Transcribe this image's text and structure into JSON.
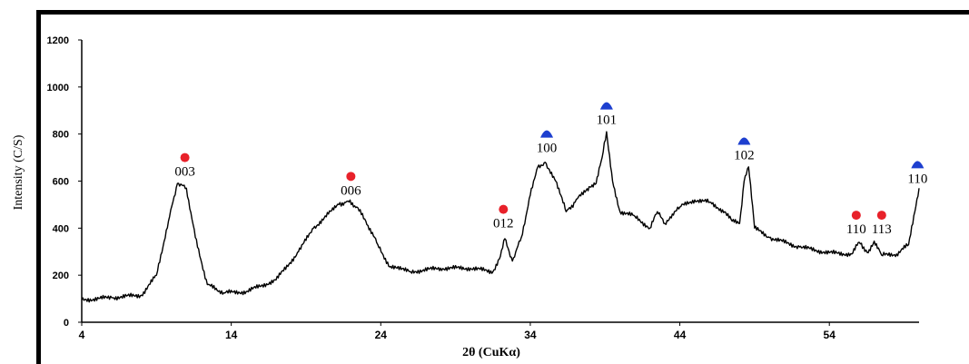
{
  "chart_data": {
    "type": "line",
    "xlabel": "2θ (CuKα)",
    "ylabel": "Intensity (C/S)",
    "xlim": [
      4,
      60
    ],
    "ylim": [
      0,
      1200
    ],
    "x_ticks": [
      4,
      14,
      24,
      34,
      44,
      54
    ],
    "y_ticks": [
      0,
      200,
      400,
      600,
      800,
      1000,
      1200
    ],
    "grid": false,
    "series": [
      {
        "x": [
          4,
          6,
          8,
          9,
          9.8,
          10.4,
          11,
          11.6,
          12.4,
          13.5,
          15,
          17,
          18.5,
          19.5,
          20.5,
          21.2,
          21.8,
          22.4,
          23,
          23.8,
          24.6,
          26,
          28,
          30,
          31.5,
          32,
          32.3,
          32.8,
          33.4,
          34,
          34.5,
          35,
          35.7,
          36.4,
          37,
          37.6,
          38,
          38.4,
          38.8,
          39.1,
          39.5,
          40,
          41,
          42,
          42.5,
          43,
          43.5,
          44,
          45,
          46,
          47,
          47.5,
          48,
          48.3,
          48.6,
          49,
          50,
          52,
          54,
          55.5,
          56,
          56.6,
          57,
          57.5,
          58.5,
          59.3,
          60
        ],
        "y": [
          95,
          105,
          115,
          200,
          430,
          590,
          570,
          360,
          160,
          125,
          130,
          180,
          300,
          400,
          460,
          500,
          515,
          490,
          430,
          330,
          235,
          215,
          230,
          230,
          215,
          280,
          355,
          260,
          360,
          540,
          660,
          680,
          600,
          470,
          510,
          560,
          575,
          590,
          700,
          810,
          600,
          470,
          450,
          400,
          470,
          420,
          460,
          490,
          520,
          510,
          470,
          430,
          420,
          600,
          660,
          400,
          360,
          320,
          295,
          290,
          340,
          295,
          345,
          285,
          290,
          330,
          570
        ]
      }
    ],
    "annotations": [
      {
        "text": "003",
        "x": 10.9,
        "y": 700,
        "marker": "circle",
        "color": "#e8212a"
      },
      {
        "text": "006",
        "x": 22.0,
        "y": 620,
        "marker": "circle",
        "color": "#e8212a"
      },
      {
        "text": "012",
        "x": 32.2,
        "y": 480,
        "marker": "circle",
        "color": "#e8212a"
      },
      {
        "text": "100",
        "x": 35.1,
        "y": 800,
        "marker": "triangle",
        "color": "#1d3fcf"
      },
      {
        "text": "101",
        "x": 39.1,
        "y": 920,
        "marker": "triangle",
        "color": "#1d3fcf"
      },
      {
        "text": "102",
        "x": 48.3,
        "y": 770,
        "marker": "triangle",
        "color": "#1d3fcf"
      },
      {
        "text": "110",
        "x": 55.8,
        "y": 455,
        "marker": "circle",
        "color": "#e8212a"
      },
      {
        "text": "113",
        "x": 57.5,
        "y": 455,
        "marker": "circle",
        "color": "#e8212a"
      },
      {
        "text": "110",
        "x": 59.9,
        "y": 670,
        "marker": "triangle",
        "color": "#1d3fcf"
      }
    ]
  }
}
